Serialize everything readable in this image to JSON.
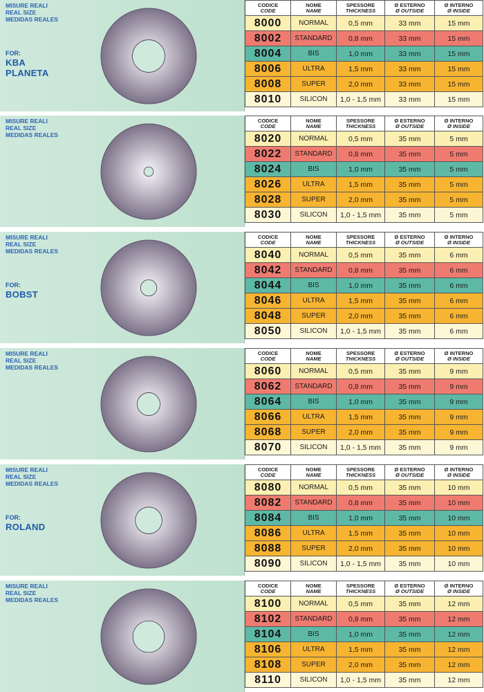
{
  "labels": {
    "measures": [
      "MISURE REALI",
      "REAL SIZE",
      "MEDIDAS REALES"
    ],
    "for_label": "FOR:"
  },
  "headers": [
    {
      "top": "CODICE",
      "bottom": "CODE"
    },
    {
      "top": "NOME",
      "bottom": "NAME"
    },
    {
      "top": "SPESSORE",
      "bottom": "THICKNESS"
    },
    {
      "top": "Ø ESTERNO",
      "bottom": "Ø OUTSIDE"
    },
    {
      "top": "Ø INTERNO",
      "bottom": "Ø INSIDE"
    }
  ],
  "row_colors": [
    "#fbf0b2",
    "#ef7b70",
    "#5db9a5",
    "#f7b431",
    "#f7b431",
    "#fdf7d6"
  ],
  "disc": {
    "edge_color": "#7d7389",
    "center_color": "#f8f6fb"
  },
  "sections": [
    {
      "machine": [
        "KBA",
        "PLANETA"
      ],
      "hole_ratio": 0.34,
      "rows": [
        [
          "8000",
          "NORMAL",
          "0,5 mm",
          "33 mm",
          "15 mm"
        ],
        [
          "8002",
          "STANDARD",
          "0,8 mm",
          "33 mm",
          "15 mm"
        ],
        [
          "8004",
          "BIS",
          "1,0 mm",
          "33 mm",
          "15 mm"
        ],
        [
          "8006",
          "ULTRA",
          "1,5 mm",
          "33 mm",
          "15 mm"
        ],
        [
          "8008",
          "SUPER",
          "2,0 mm",
          "33 mm",
          "15 mm"
        ],
        [
          "8010",
          "SILICON",
          "1,0 - 1,5 mm",
          "33 mm",
          "15 mm"
        ]
      ]
    },
    {
      "machine": [],
      "hole_ratio": 0.1,
      "rows": [
        [
          "8020",
          "NORMAL",
          "0,5 mm",
          "35 mm",
          "5 mm"
        ],
        [
          "8022",
          "STANDARD",
          "0,8 mm",
          "35 mm",
          "5 mm"
        ],
        [
          "8024",
          "BIS",
          "1,0 mm",
          "35 mm",
          "5 mm"
        ],
        [
          "8026",
          "ULTRA",
          "1,5 mm",
          "35 mm",
          "5 mm"
        ],
        [
          "8028",
          "SUPER",
          "2,0 mm",
          "35 mm",
          "5 mm"
        ],
        [
          "8030",
          "SILICON",
          "1,0 - 1,5 mm",
          "35 mm",
          "5 mm"
        ]
      ]
    },
    {
      "machine": [
        "BOBST"
      ],
      "hole_ratio": 0.17,
      "rows": [
        [
          "8040",
          "NORMAL",
          "0,5 mm",
          "35 mm",
          "6 mm"
        ],
        [
          "8042",
          "STANDARD",
          "0,8 mm",
          "35 mm",
          "6 mm"
        ],
        [
          "8044",
          "BIS",
          "1,0 mm",
          "35 mm",
          "6 mm"
        ],
        [
          "8046",
          "ULTRA",
          "1,5 mm",
          "35 mm",
          "6 mm"
        ],
        [
          "8048",
          "SUPER",
          "2,0 mm",
          "35 mm",
          "6 mm"
        ],
        [
          "8050",
          "SILICON",
          "1,0 - 1,5 mm",
          "35 mm",
          "6 mm"
        ]
      ]
    },
    {
      "machine": [],
      "hole_ratio": 0.24,
      "rows": [
        [
          "8060",
          "NORMAL",
          "0,5 mm",
          "35 mm",
          "9 mm"
        ],
        [
          "8062",
          "STANDARD",
          "0,8 mm",
          "35 mm",
          "9 mm"
        ],
        [
          "8064",
          "BIS",
          "1,0 mm",
          "35 mm",
          "9 mm"
        ],
        [
          "8066",
          "ULTRA",
          "1,5 mm",
          "35 mm",
          "9 mm"
        ],
        [
          "8068",
          "SUPER",
          "2,0 mm",
          "35 mm",
          "9 mm"
        ],
        [
          "8070",
          "SILICON",
          "1,0 - 1,5 mm",
          "35 mm",
          "9 mm"
        ]
      ]
    },
    {
      "machine": [
        "ROLAND"
      ],
      "hole_ratio": 0.28,
      "rows": [
        [
          "8080",
          "NORMAL",
          "0,5 mm",
          "35 mm",
          "10 mm"
        ],
        [
          "8082",
          "STANDARD",
          "0,8 mm",
          "35 mm",
          "10 mm"
        ],
        [
          "8084",
          "BIS",
          "1,0 mm",
          "35 mm",
          "10 mm"
        ],
        [
          "8086",
          "ULTRA",
          "1,5 mm",
          "35 mm",
          "10 mm"
        ],
        [
          "8088",
          "SUPER",
          "2,0 mm",
          "35 mm",
          "10 mm"
        ],
        [
          "8090",
          "SILICON",
          "1,0 - 1,5 mm",
          "35 mm",
          "10 mm"
        ]
      ]
    },
    {
      "machine": [],
      "hole_ratio": 0.33,
      "rows": [
        [
          "8100",
          "NORMAL",
          "0,5 mm",
          "35 mm",
          "12 mm"
        ],
        [
          "8102",
          "STANDARD",
          "0,8 mm",
          "35 mm",
          "12 mm"
        ],
        [
          "8104",
          "BIS",
          "1,0 mm",
          "35 mm",
          "12 mm"
        ],
        [
          "8106",
          "ULTRA",
          "1,5 mm",
          "35 mm",
          "12 mm"
        ],
        [
          "8108",
          "SUPER",
          "2,0 mm",
          "35 mm",
          "12 mm"
        ],
        [
          "8110",
          "SILICON",
          "1,0 - 1,5 mm",
          "35 mm",
          "12 mm"
        ]
      ]
    }
  ]
}
